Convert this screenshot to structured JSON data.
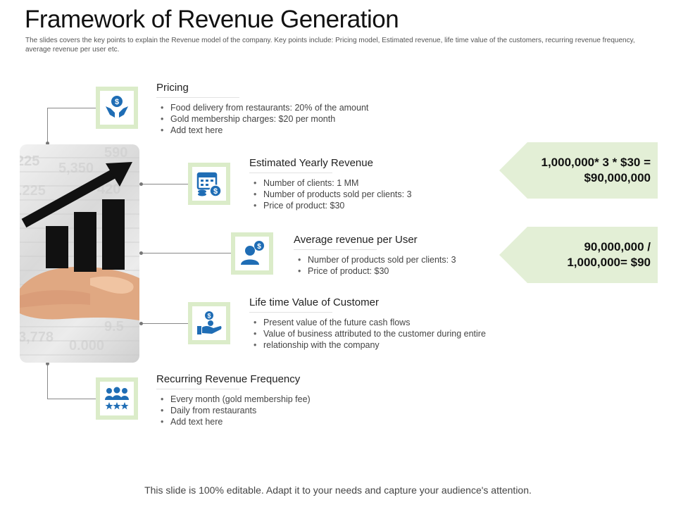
{
  "header": {
    "title": "Framework of Revenue Generation",
    "subtitle": "The slides covers the key points to explain the Revenue model of the company. Key points include: Pricing model, Estimated revenue, life time value of the customers, recurring revenue frequency, average revenue per user etc."
  },
  "sections": [
    {
      "title": "Pricing",
      "icon": "hands-dollar-icon",
      "bullets": [
        "Food delivery from restaurants: 20% of the amount",
        "Gold membership charges: $20 per month",
        "Add text here"
      ]
    },
    {
      "title": "Estimated Yearly Revenue",
      "icon": "calendar-coins-icon",
      "bullets": [
        "Number of clients: 1 MM",
        "Number of products sold per clients: 3",
        "Price of product: $30"
      ]
    },
    {
      "title": "Average revenue per User",
      "icon": "user-dollar-icon",
      "bullets": [
        "Number of products sold per clients: 3",
        "Price of product: $30"
      ]
    },
    {
      "title": "Life time Value of Customer",
      "icon": "hand-coin-icon",
      "bullets": [
        "Present value of the future cash flows",
        "Value of business  attributed to the customer during entire",
        "relationship with the company"
      ]
    },
    {
      "title": "Recurring Revenue Frequency",
      "icon": "group-stars-icon",
      "bullets": [
        "Every month (gold membership fee)",
        "Daily from restaurants",
        "Add text here"
      ]
    }
  ],
  "callouts": [
    {
      "line1": "1,000,000* 3 * $30 =",
      "line2": "$90,000,000"
    },
    {
      "line1": "90,000,000 /",
      "line2": "1,000,000= $90"
    }
  ],
  "footer": "This slide is 100% editable. Adapt it to your needs and capture your audience's attention.",
  "colors": {
    "accent_green": "#dbecc9",
    "icon_blue": "#1f6db5"
  }
}
